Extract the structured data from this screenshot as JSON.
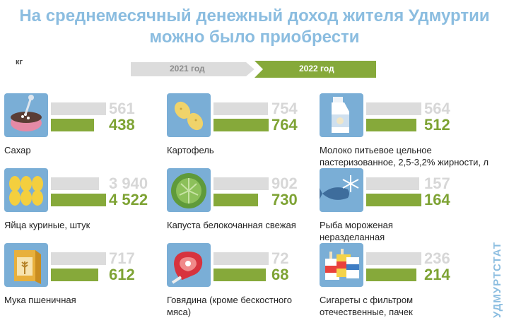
{
  "title_line1": "На среднемесячный денежный доход жителя Удмуртии",
  "title_line2": "можно было приобрести",
  "unit": "кг",
  "source": "УДМУРТСТАТ",
  "colors": {
    "y2021": "#dcdcdc",
    "y2022": "#86a93a",
    "title": "#8bbde0",
    "icon_bg": "#7aaed6"
  },
  "chart_data": {
    "type": "bar",
    "series": [
      {
        "name": "2021 год",
        "values": [
          561,
          754,
          564,
          3940,
          902,
          157,
          717,
          72,
          236
        ]
      },
      {
        "name": "2022 год",
        "values": [
          438,
          764,
          512,
          4522,
          730,
          164,
          612,
          68,
          214
        ]
      }
    ],
    "categories": [
      "Сахар",
      "Картофель",
      "Молоко питьевое цельное пастеризованное, 2,5-3,2% жирности, л",
      "Яйца куриные, штук",
      "Капуста белокочанная свежая",
      "Рыба мороженая неразделанная",
      "Мука пшеничная",
      "Говядина (кроме бескостного мяса)",
      "Сигареты с фильтром отечественные, пачек"
    ],
    "labels_2021": [
      "561",
      "754",
      "564",
      "3 940",
      "902",
      "157",
      "717",
      "72",
      "236"
    ],
    "labels_2022": [
      "438",
      "764",
      "512",
      "4 522",
      "730",
      "164",
      "612",
      "68",
      "214"
    ],
    "icons": [
      "sugar-bowl-icon",
      "potato-icon",
      "milk-bottle-icon",
      "eggs-icon",
      "cabbage-icon",
      "fish-icon",
      "flour-bag-icon",
      "beef-icon",
      "cigarettes-icon"
    ]
  }
}
